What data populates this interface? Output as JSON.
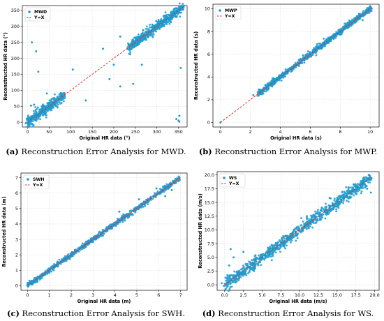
{
  "figure": {
    "panels": [
      {
        "id": "mwd",
        "caption_letter": "(a)",
        "caption_text": " Reconstruction Error Analysis for MWD.",
        "chart_data": {
          "type": "scatter",
          "xlabel": "Original HR data (°)",
          "ylabel": "Reconstructed HR data (°)",
          "xlim": [
            -12,
            370
          ],
          "ylim": [
            -15,
            365
          ],
          "xticks": [
            0,
            50,
            100,
            150,
            200,
            250,
            300,
            350
          ],
          "yticks": [
            0,
            50,
            100,
            150,
            200,
            250,
            300,
            350
          ],
          "grid": true,
          "legend_position": "top-left",
          "series": [
            {
              "name": "MWD",
              "kind": "points",
              "color": "#1f9bcf",
              "main_ranges": [
                [
                  0,
                  85
                ],
                [
                  235,
                  360
                ]
              ],
              "spread": 8,
              "outliers": [
                [
                  2,
                  325
                ],
                [
                  5,
                  320
                ],
                [
                  10,
                  250
                ],
                [
                  20,
                  222
                ],
                [
                  25,
                  158
                ],
                [
                  8,
                  52
                ],
                [
                  15,
                  55
                ],
                [
                  45,
                  90
                ],
                [
                  105,
                  165
                ],
                [
                  135,
                  68
                ],
                [
                  175,
                  230
                ],
                [
                  190,
                  135
                ],
                [
                  200,
                  180
                ],
                [
                  215,
                  112
                ],
                [
                  215,
                  268
                ],
                [
                  245,
                  120
                ],
                [
                  265,
                  180
                ],
                [
                  355,
                  170
                ],
                [
                  350,
                  5
                ],
                [
                  352,
                  2
                ],
                [
                  345,
                  10
                ],
                [
                  352,
                  20
                ]
              ]
            },
            {
              "name": "Y=X",
              "kind": "line",
              "color": "#e03030",
              "x": [
                0,
                360
              ],
              "y": [
                0,
                360
              ]
            }
          ]
        }
      },
      {
        "id": "mwp",
        "caption_letter": "(b)",
        "caption_text": " Reconstruction Error Analysis for MWP.",
        "chart_data": {
          "type": "scatter",
          "xlabel": "Original HR data (s)",
          "ylabel": "Reconstructed HR data (s)",
          "xlim": [
            -0.5,
            10.6
          ],
          "ylim": [
            -0.4,
            10.4
          ],
          "xticks": [
            0,
            2,
            4,
            6,
            8,
            10
          ],
          "yticks": [
            0,
            2,
            4,
            6,
            8,
            10
          ],
          "grid": true,
          "legend_position": "top-left",
          "series": [
            {
              "name": "MWP",
              "kind": "points",
              "color": "#1f9bcf",
              "main_ranges": [
                [
                  2.5,
                  10.1
                ]
              ],
              "spread": 0.12,
              "outliers": [
                [
                  0,
                  0
                ],
                [
                  2.2,
                  2.4
                ],
                [
                  3.2,
                  2.9
                ],
                [
                  3.0,
                  3.3
                ],
                [
                  9.5,
                  9.0
                ]
              ]
            },
            {
              "name": "Y=X",
              "kind": "line",
              "color": "#e03030",
              "x": [
                0,
                10.1
              ],
              "y": [
                0,
                10.1
              ]
            }
          ]
        }
      },
      {
        "id": "swh",
        "caption_letter": "(c)",
        "caption_text": " Reconstruction Error Analysis for SWH.",
        "chart_data": {
          "type": "scatter",
          "xlabel": "Original HR data (m)",
          "ylabel": "Reconstructed HR data (m)",
          "xlim": [
            -0.3,
            7.3
          ],
          "ylim": [
            -0.3,
            7.3
          ],
          "xticks": [
            0,
            1,
            2,
            3,
            4,
            5,
            6,
            7
          ],
          "yticks": [
            0,
            1,
            2,
            3,
            4,
            5,
            6,
            7
          ],
          "grid": true,
          "legend_position": "top-left",
          "series": [
            {
              "name": "SWH",
              "kind": "points",
              "color": "#1f9bcf",
              "main_ranges": [
                [
                  0,
                  7
                ]
              ],
              "spread": 0.08,
              "outliers": [
                [
                  4.2,
                  4.8
                ],
                [
                  5.1,
                  5.6
                ],
                [
                  5.9,
                  6.3
                ],
                [
                  6.3,
                  5.8
                ],
                [
                  6.6,
                  6.2
                ]
              ]
            },
            {
              "name": "Y=X",
              "kind": "line",
              "color": "#e03030",
              "x": [
                0,
                7
              ],
              "y": [
                0,
                7
              ]
            }
          ]
        }
      },
      {
        "id": "ws",
        "caption_letter": "(d)",
        "caption_text": " Reconstruction Error Analysis for WS.",
        "chart_data": {
          "type": "scatter",
          "xlabel": "Original HR data (m/s)",
          "ylabel": "Reconstructed HR data (m/s)",
          "xlim": [
            -1.0,
            20.6
          ],
          "ylim": [
            -1.0,
            20.6
          ],
          "xticks": [
            0.0,
            2.5,
            5.0,
            7.5,
            10.0,
            12.5,
            15.0,
            17.5,
            20.0
          ],
          "yticks": [
            0.0,
            2.5,
            5.0,
            7.5,
            10.0,
            12.5,
            15.0,
            17.5,
            20.0
          ],
          "tick_decimals": 1,
          "grid": true,
          "legend_position": "top-left",
          "series": [
            {
              "name": "WS",
              "kind": "points",
              "color": "#1f9bcf",
              "main_ranges": [
                [
                  0,
                  19.5
                ]
              ],
              "spread": 0.55,
              "outliers": [
                [
                  0.8,
                  6.5
                ],
                [
                  0.6,
                  3.5
                ],
                [
                  2.5,
                  6.0
                ],
                [
                  1.2,
                  5.0
                ],
                [
                  17.5,
                  16.6
                ],
                [
                  19.0,
                  17.5
                ],
                [
                  19.5,
                  16.8
                ],
                [
                  14.0,
                  15.8
                ]
              ]
            },
            {
              "name": "Y=X",
              "kind": "line",
              "color": "#e03030",
              "x": [
                0,
                19.5
              ],
              "y": [
                0,
                19.5
              ]
            }
          ]
        }
      }
    ]
  }
}
